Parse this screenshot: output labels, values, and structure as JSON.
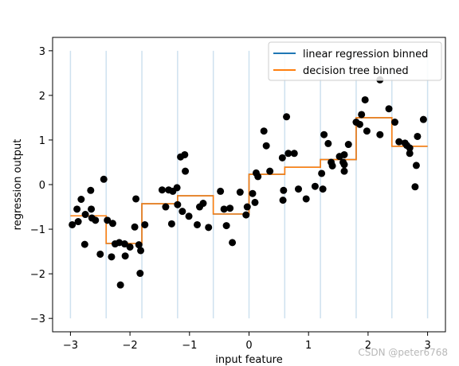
{
  "chart_data": {
    "type": "line",
    "title": "",
    "xlabel": "input feature",
    "ylabel": "regression output",
    "xlim": [
      -3.3,
      3.3
    ],
    "ylim": [
      -3.3,
      3.3
    ],
    "xticks": [
      -3,
      -2,
      -1,
      0,
      1,
      2,
      3
    ],
    "yticks": [
      -3,
      -2,
      -1,
      0,
      1,
      2,
      3
    ],
    "xtick_labels": [
      "−3",
      "−2",
      "−1",
      "0",
      "1",
      "2",
      "3"
    ],
    "ytick_labels": [
      "−3",
      "−2",
      "−1",
      "0",
      "1",
      "2",
      "3"
    ],
    "legend_position": "top-right",
    "bin_edges": [
      -3.0,
      -2.4,
      -1.8,
      -1.2,
      -0.6,
      0.0,
      0.6,
      1.2,
      1.8,
      2.4,
      3.0
    ],
    "bin_lines_ylim": [
      -3,
      3
    ],
    "series": [
      {
        "name": "linear regression binned",
        "color": "#1f77b4",
        "x": [
          -3.0,
          -2.4,
          -2.4,
          -1.8,
          -1.8,
          -1.2,
          -1.2,
          -0.6,
          -0.6,
          0.0,
          0.0,
          0.6,
          0.6,
          1.2,
          1.2,
          1.8,
          1.8,
          2.4,
          2.4,
          3.0
        ],
        "y": [
          -0.7,
          -0.7,
          -1.32,
          -1.32,
          -0.43,
          -0.43,
          -0.25,
          -0.25,
          -0.66,
          -0.66,
          0.23,
          0.23,
          0.39,
          0.39,
          0.56,
          0.56,
          1.5,
          1.5,
          0.86,
          0.86
        ]
      },
      {
        "name": "decision tree binned",
        "color": "#ff7f0e",
        "x": [
          -3.0,
          -2.4,
          -2.4,
          -1.8,
          -1.8,
          -1.2,
          -1.2,
          -0.6,
          -0.6,
          0.0,
          0.0,
          0.6,
          0.6,
          1.2,
          1.2,
          1.8,
          1.8,
          2.4,
          2.4,
          3.0
        ],
        "y": [
          -0.7,
          -0.7,
          -1.32,
          -1.32,
          -0.43,
          -0.43,
          -0.25,
          -0.25,
          -0.66,
          -0.66,
          0.23,
          0.23,
          0.39,
          0.39,
          0.56,
          0.56,
          1.5,
          1.5,
          0.86,
          0.86
        ]
      }
    ],
    "scatter": {
      "color": "#000000",
      "points": [
        [
          -2.97,
          -0.9
        ],
        [
          -2.89,
          -0.55
        ],
        [
          -2.87,
          -0.83
        ],
        [
          -2.82,
          -0.33
        ],
        [
          -2.76,
          -1.34
        ],
        [
          -2.75,
          -0.67
        ],
        [
          -2.66,
          -0.13
        ],
        [
          -2.65,
          -0.55
        ],
        [
          -2.64,
          -0.75
        ],
        [
          -2.58,
          -0.8
        ],
        [
          -2.5,
          -1.56
        ],
        [
          -2.44,
          0.12
        ],
        [
          -2.38,
          -0.8
        ],
        [
          -2.31,
          -1.62
        ],
        [
          -2.29,
          -0.87
        ],
        [
          -2.25,
          -1.33
        ],
        [
          -2.18,
          -1.3
        ],
        [
          -2.16,
          -2.25
        ],
        [
          -2.09,
          -1.33
        ],
        [
          -2.08,
          -1.6
        ],
        [
          -2.0,
          -1.4
        ],
        [
          -1.92,
          -0.95
        ],
        [
          -1.9,
          -0.32
        ],
        [
          -1.85,
          -1.35
        ],
        [
          -1.83,
          -1.99
        ],
        [
          -1.82,
          -1.48
        ],
        [
          -1.75,
          -0.9
        ],
        [
          -1.46,
          -0.12
        ],
        [
          -1.4,
          -0.5
        ],
        [
          -1.35,
          -0.12
        ],
        [
          -1.3,
          -0.88
        ],
        [
          -1.28,
          -0.15
        ],
        [
          -1.21,
          -0.07
        ],
        [
          -1.2,
          -0.45
        ],
        [
          -1.15,
          0.62
        ],
        [
          -1.12,
          -0.6
        ],
        [
          -1.08,
          0.67
        ],
        [
          -1.07,
          0.3
        ],
        [
          -1.01,
          -0.71
        ],
        [
          -0.87,
          -0.9
        ],
        [
          -0.83,
          -0.5
        ],
        [
          -0.77,
          -0.42
        ],
        [
          -0.68,
          -0.96
        ],
        [
          -0.48,
          -0.15
        ],
        [
          -0.42,
          -0.55
        ],
        [
          -0.38,
          -0.92
        ],
        [
          -0.32,
          -0.53
        ],
        [
          -0.28,
          -1.3
        ],
        [
          -0.15,
          -0.17
        ],
        [
          -0.05,
          -0.68
        ],
        [
          -0.03,
          -0.5
        ],
        [
          0.06,
          -0.2
        ],
        [
          0.1,
          -0.4
        ],
        [
          0.12,
          0.26
        ],
        [
          0.15,
          0.18
        ],
        [
          0.25,
          1.2
        ],
        [
          0.29,
          0.87
        ],
        [
          0.35,
          0.3
        ],
        [
          0.56,
          0.6
        ],
        [
          0.57,
          -0.35
        ],
        [
          0.58,
          -0.13
        ],
        [
          0.63,
          1.52
        ],
        [
          0.66,
          0.7
        ],
        [
          0.76,
          0.7
        ],
        [
          0.83,
          -0.1
        ],
        [
          0.96,
          -0.32
        ],
        [
          1.11,
          -0.04
        ],
        [
          1.22,
          0.25
        ],
        [
          1.24,
          -0.1
        ],
        [
          1.26,
          1.12
        ],
        [
          1.33,
          0.92
        ],
        [
          1.38,
          0.5
        ],
        [
          1.4,
          0.42
        ],
        [
          1.52,
          0.63
        ],
        [
          1.58,
          0.5
        ],
        [
          1.6,
          0.3
        ],
        [
          1.6,
          0.45
        ],
        [
          1.6,
          0.67
        ],
        [
          1.67,
          0.9
        ],
        [
          1.8,
          1.4
        ],
        [
          1.86,
          1.35
        ],
        [
          1.89,
          1.57
        ],
        [
          1.95,
          1.9
        ],
        [
          1.98,
          1.2
        ],
        [
          2.2,
          1.12
        ],
        [
          2.2,
          2.35
        ],
        [
          2.35,
          1.7
        ],
        [
          2.45,
          1.4
        ],
        [
          2.52,
          0.96
        ],
        [
          2.62,
          0.93
        ],
        [
          2.65,
          0.88
        ],
        [
          2.7,
          0.82
        ],
        [
          2.7,
          0.7
        ],
        [
          2.79,
          -0.05
        ],
        [
          2.81,
          0.43
        ],
        [
          2.83,
          1.08
        ],
        [
          2.93,
          1.46
        ]
      ]
    }
  },
  "watermark": "CSDN @peter6768"
}
